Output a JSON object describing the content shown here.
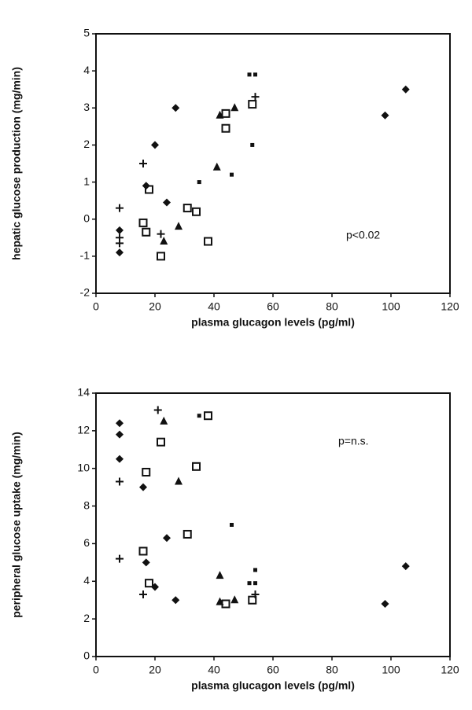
{
  "chart_data": [
    {
      "type": "scatter",
      "y_label": "hepatic glucose production (mg/min)",
      "x_label": "plasma glucagon levels (pg/ml)",
      "annotation": "p<0.02",
      "xlim": [
        0,
        120
      ],
      "xticks": [
        0,
        20,
        40,
        60,
        80,
        100,
        120
      ],
      "ylim": [
        -2,
        5
      ],
      "yticks": [
        -2,
        -1,
        0,
        1,
        2,
        3,
        4,
        5
      ],
      "series": [
        {
          "marker": "diamond",
          "color": "#111",
          "x": [
            8,
            8,
            17,
            20,
            24,
            27,
            98,
            105
          ],
          "y": [
            -0.3,
            -0.9,
            0.9,
            2.0,
            0.45,
            3.0,
            2.8,
            3.5
          ]
        },
        {
          "marker": "plus",
          "color": "#111",
          "x": [
            8,
            8,
            8,
            16,
            22,
            54
          ],
          "y": [
            0.3,
            -0.5,
            -0.65,
            1.5,
            -0.4,
            3.3
          ]
        },
        {
          "marker": "open-square",
          "color": "#111",
          "x": [
            16,
            17,
            18,
            22,
            31,
            34,
            38,
            44,
            44,
            53
          ],
          "y": [
            -0.1,
            -0.35,
            0.8,
            -1.0,
            0.3,
            0.2,
            -0.6,
            2.85,
            2.45,
            3.1
          ]
        },
        {
          "marker": "triangle",
          "color": "#111",
          "x": [
            23,
            28,
            41,
            42,
            47
          ],
          "y": [
            -0.6,
            -0.2,
            1.4,
            2.8,
            3.0
          ]
        },
        {
          "marker": "small-square",
          "color": "#111",
          "x": [
            35,
            46,
            52,
            54,
            53
          ],
          "y": [
            1.0,
            1.2,
            3.9,
            3.9,
            2.0
          ]
        }
      ]
    },
    {
      "type": "scatter",
      "y_label": "peripheral glucose uptake (mg/min)",
      "x_label": "plasma glucagon levels (pg/ml)",
      "annotation": "p=n.s.",
      "xlim": [
        0,
        120
      ],
      "xticks": [
        0,
        20,
        40,
        60,
        80,
        100,
        120
      ],
      "ylim": [
        0,
        14
      ],
      "yticks": [
        0,
        2,
        4,
        6,
        8,
        10,
        12,
        14
      ],
      "series": [
        {
          "marker": "diamond",
          "color": "#111",
          "x": [
            8,
            8,
            8,
            16,
            17,
            20,
            24,
            27,
            98,
            105
          ],
          "y": [
            12.4,
            11.8,
            10.5,
            9.0,
            5.0,
            3.7,
            6.3,
            3.0,
            2.8,
            4.8
          ]
        },
        {
          "marker": "plus",
          "color": "#111",
          "x": [
            8,
            8,
            16,
            21,
            54
          ],
          "y": [
            9.3,
            5.2,
            3.3,
            13.1,
            3.3
          ]
        },
        {
          "marker": "open-square",
          "color": "#111",
          "x": [
            16,
            17,
            18,
            22,
            31,
            34,
            38,
            44,
            53
          ],
          "y": [
            5.6,
            9.8,
            3.9,
            11.4,
            6.5,
            10.1,
            12.8,
            2.8,
            3.0
          ]
        },
        {
          "marker": "triangle",
          "color": "#111",
          "x": [
            23,
            28,
            42,
            42,
            47
          ],
          "y": [
            12.5,
            9.3,
            4.3,
            2.9,
            3.0
          ]
        },
        {
          "marker": "small-square",
          "color": "#111",
          "x": [
            35,
            46,
            52,
            54,
            54
          ],
          "y": [
            12.8,
            7.0,
            3.9,
            3.9,
            4.6
          ]
        }
      ]
    }
  ]
}
